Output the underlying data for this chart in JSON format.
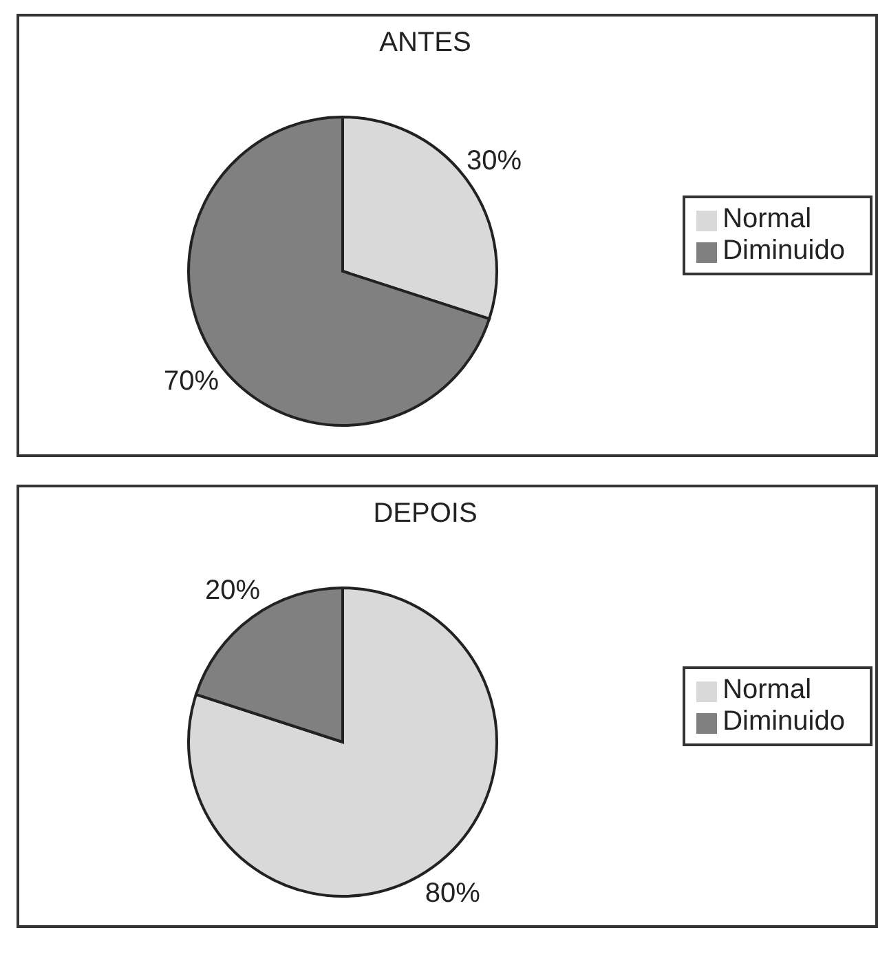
{
  "chart_data": [
    {
      "type": "pie",
      "title": "ANTES",
      "categories": [
        "Normal",
        "Diminuido"
      ],
      "values": [
        30,
        70
      ],
      "colors": [
        "#d9d9d9",
        "#808080"
      ],
      "value_labels": [
        "30%",
        "70%"
      ],
      "legend": "right"
    },
    {
      "type": "pie",
      "title": "DEPOIS",
      "categories": [
        "Normal",
        "Diminuido"
      ],
      "values": [
        80,
        20
      ],
      "colors": [
        "#d9d9d9",
        "#808080"
      ],
      "value_labels": [
        "80%",
        "20%"
      ],
      "legend": "right"
    }
  ]
}
